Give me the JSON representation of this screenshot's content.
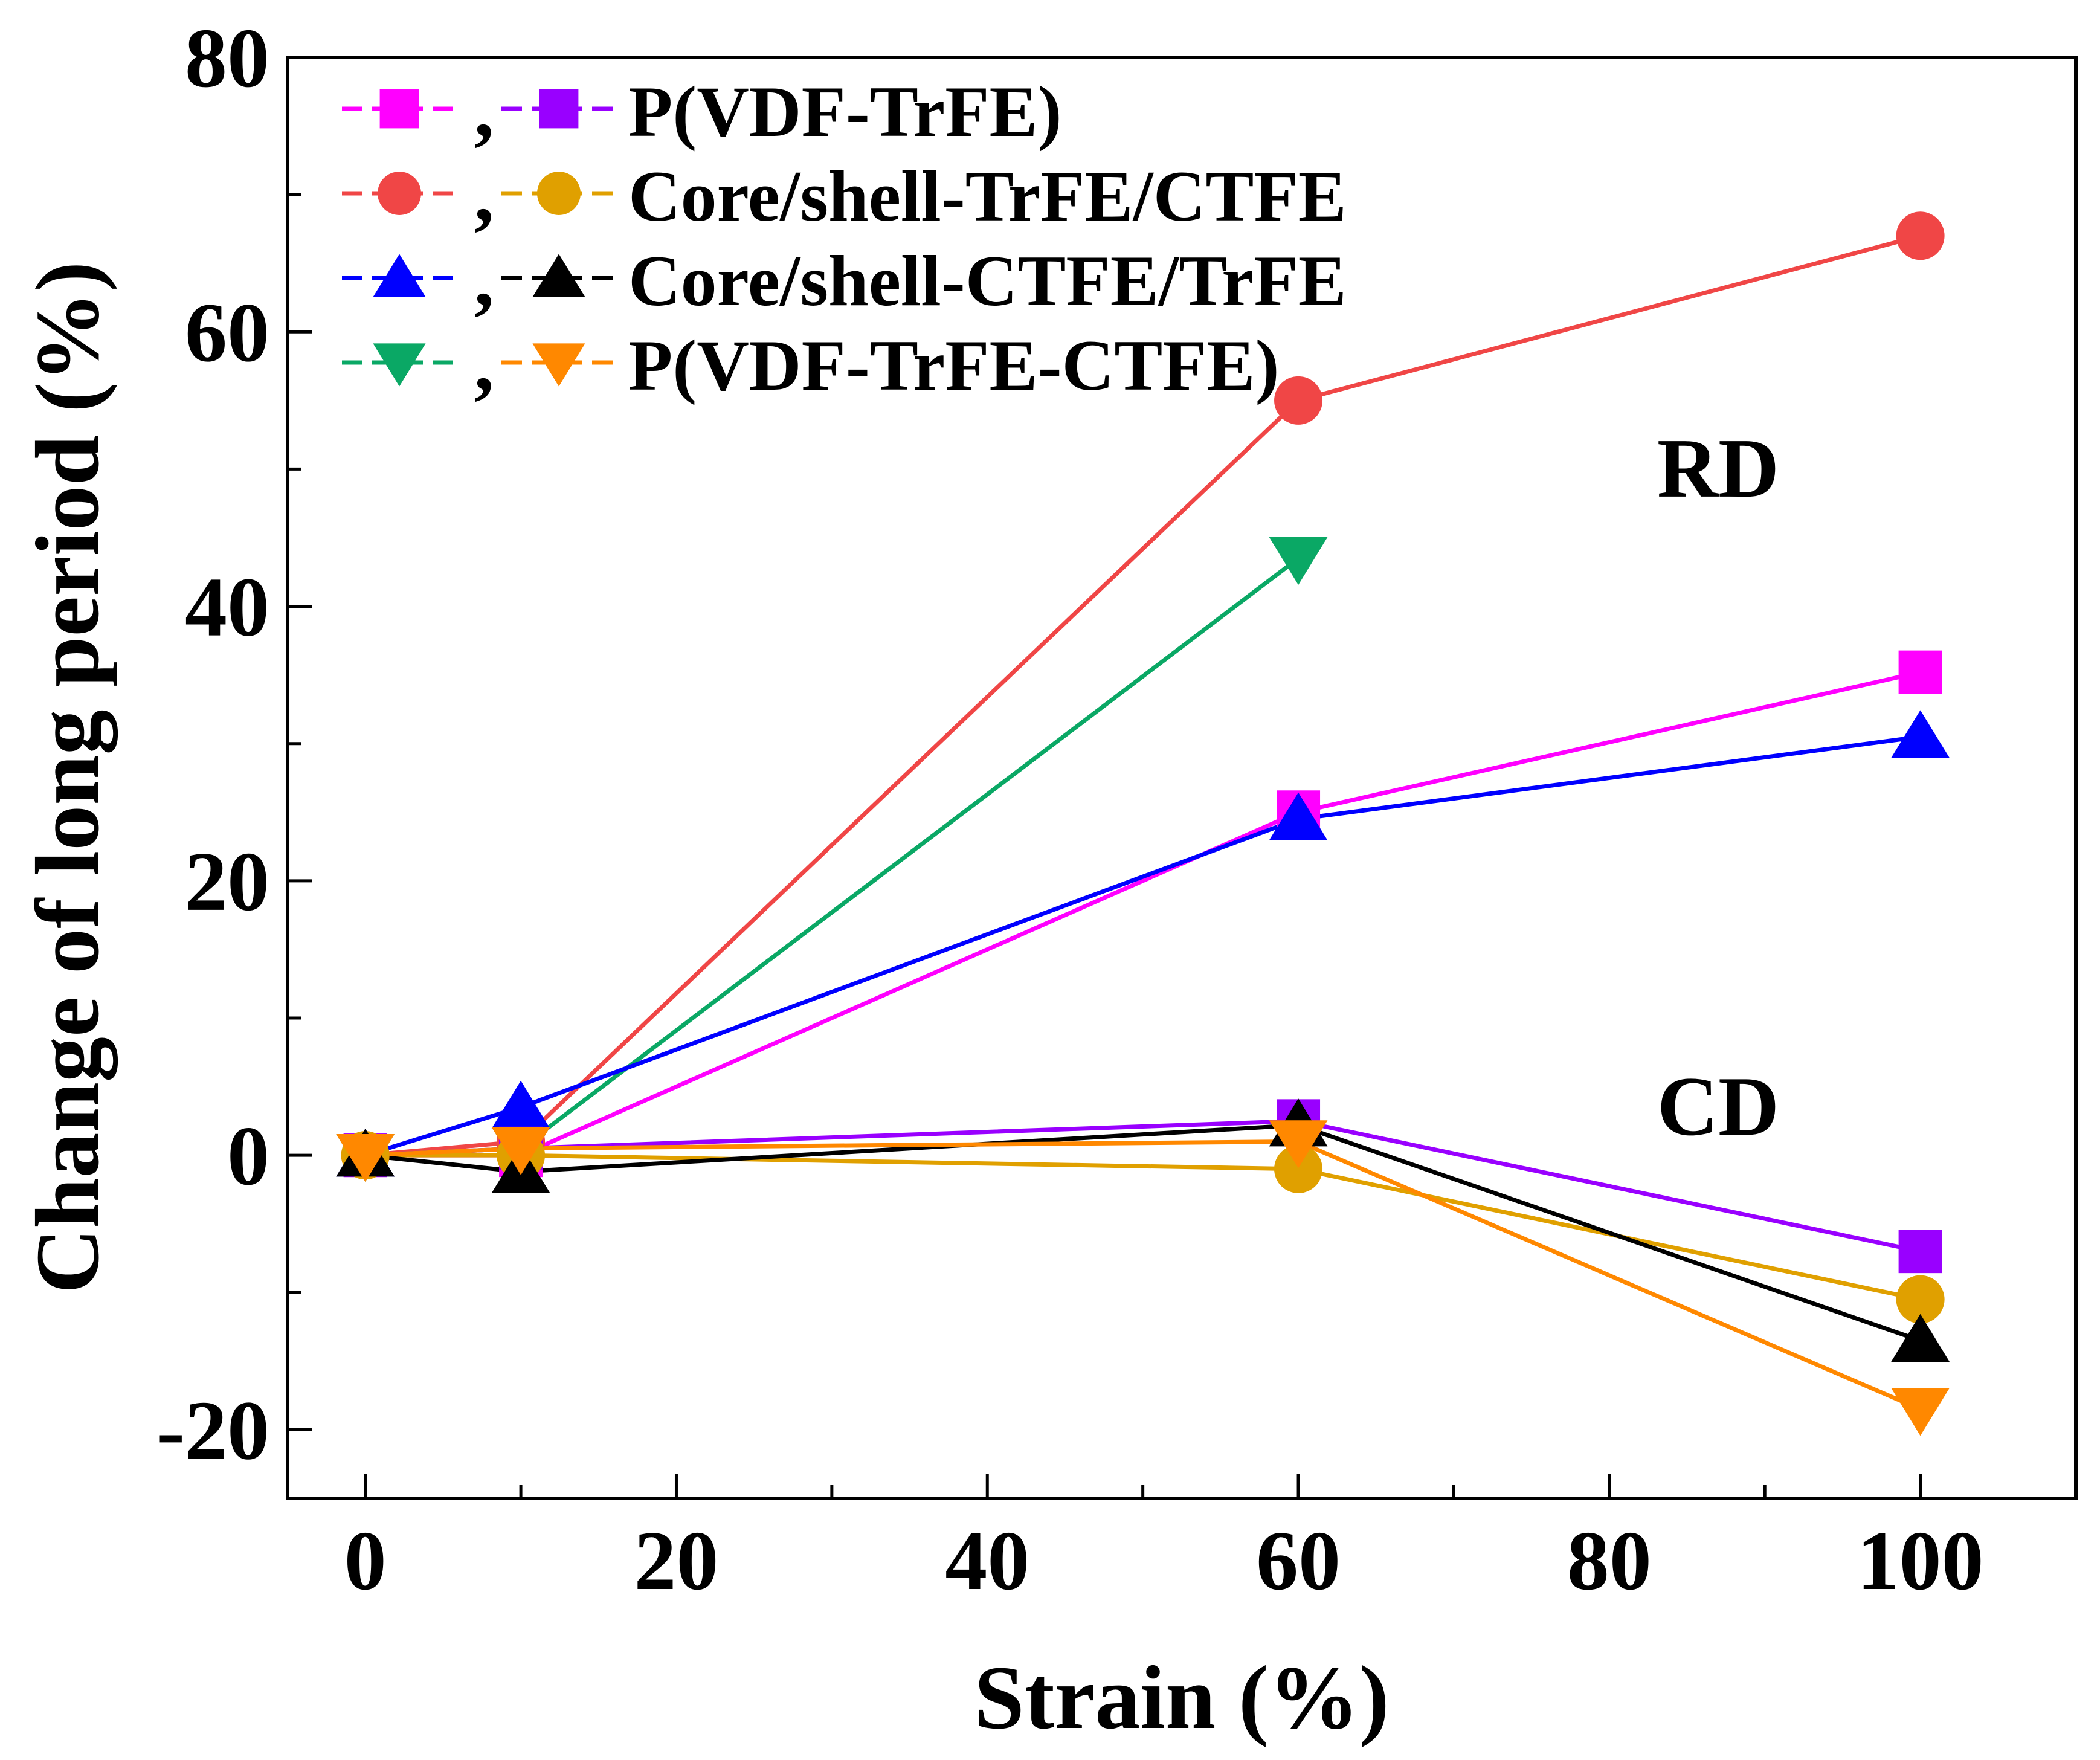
{
  "chart_data": {
    "type": "line",
    "xlabel": "Strain (%)",
    "ylabel": "Change of long period (%)",
    "xlim": [
      -5,
      110
    ],
    "ylim": [
      -25,
      80
    ],
    "x_ticks": [
      0,
      20,
      40,
      60,
      80,
      100
    ],
    "y_ticks": [
      -20,
      0,
      20,
      40,
      60,
      80
    ],
    "x_tick_labels": [
      "0",
      "20",
      "40",
      "60",
      "80",
      "100"
    ],
    "y_tick_labels": [
      "-20",
      "0",
      "20",
      "40",
      "60",
      "80"
    ],
    "annotations": [
      {
        "text": "RD",
        "x": 87,
        "y": 48
      },
      {
        "text": "CD",
        "x": 87,
        "y": 1.5
      }
    ],
    "legend": [
      {
        "label": "P(VDF-TrFE)",
        "series": [
          "pvdf_trfe_rd",
          "pvdf_trfe_cd"
        ]
      },
      {
        "label": "Core/shell-TrFE/CTFE",
        "series": [
          "cs_trfe_ctfe_rd",
          "cs_trfe_ctfe_cd"
        ]
      },
      {
        "label": "Core/shell-CTFE/TrFE",
        "series": [
          "cs_ctfe_trfe_rd",
          "cs_ctfe_trfe_cd"
        ]
      },
      {
        "label": "P(VDF-TrFE-CTFE)",
        "series": [
          "terpolymer_rd",
          "terpolymer_cd"
        ]
      }
    ],
    "legend_separator": ",",
    "legend_position": "top-left",
    "series": [
      {
        "id": "cs_trfe_ctfe_rd",
        "name": "Core/shell-TrFE/CTFE (RD)",
        "color": "#f04646",
        "marker": "circle",
        "x": [
          0,
          10,
          60,
          100
        ],
        "y": [
          0,
          1,
          55,
          67
        ]
      },
      {
        "id": "terpolymer_rd",
        "name": "P(VDF-TrFE-CTFE) (RD)",
        "color": "#0aa865",
        "marker": "triangle-down",
        "x": [
          0,
          10,
          60
        ],
        "y": [
          0,
          0.5,
          43.5
        ]
      },
      {
        "id": "pvdf_trfe_rd",
        "name": "P(VDF-TrFE) (RD)",
        "color": "#ff00ff",
        "marker": "square",
        "x": [
          0,
          10,
          60,
          100
        ],
        "y": [
          0,
          0,
          25,
          35.2
        ]
      },
      {
        "id": "cs_ctfe_trfe_rd",
        "name": "Core/shell-CTFE/TrFE (RD)",
        "color": "#0000ff",
        "marker": "triangle-up",
        "x": [
          0,
          10,
          60,
          100
        ],
        "y": [
          0,
          3.5,
          24.5,
          30.5
        ]
      },
      {
        "id": "pvdf_trfe_cd",
        "name": "P(VDF-TrFE) (CD)",
        "color": "#9900ff",
        "marker": "square",
        "x": [
          0,
          10,
          60,
          100
        ],
        "y": [
          0,
          0.5,
          2.5,
          -7
        ]
      },
      {
        "id": "cs_trfe_ctfe_cd",
        "name": "Core/shell-TrFE/CTFE (CD)",
        "color": "#e0a000",
        "marker": "circle",
        "x": [
          0,
          10,
          60,
          100
        ],
        "y": [
          0,
          0,
          -1,
          -10.5
        ]
      },
      {
        "id": "cs_ctfe_trfe_cd",
        "name": "Core/shell-CTFE/TrFE (CD)",
        "color": "#000000",
        "marker": "triangle-up",
        "x": [
          0,
          10,
          60,
          100
        ],
        "y": [
          0,
          -1.2,
          2.2,
          -13.5
        ]
      },
      {
        "id": "terpolymer_cd",
        "name": "P(VDF-TrFE-CTFE) (CD)",
        "color": "#ff8800",
        "marker": "triangle-down",
        "x": [
          0,
          10,
          60,
          100
        ],
        "y": [
          0,
          0.5,
          1,
          -18.5
        ]
      }
    ]
  }
}
